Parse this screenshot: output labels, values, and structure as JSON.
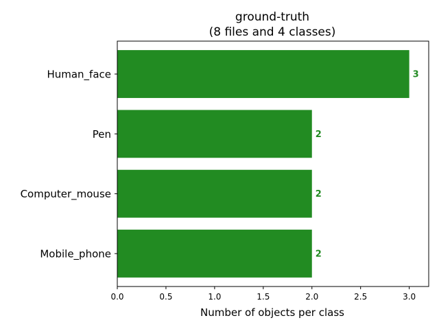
{
  "chart_data": {
    "type": "bar",
    "orientation": "horizontal",
    "title": "ground-truth",
    "subtitle": "(8 files and 4 classes)",
    "xlabel": "Number of objects per class",
    "ylabel": "",
    "categories": [
      "Human_face",
      "Pen",
      "Computer_mouse",
      "Mobile_phone"
    ],
    "values": [
      3,
      2,
      2,
      2
    ],
    "value_labels": [
      "3",
      "2",
      "2",
      "2"
    ],
    "xlim": [
      0,
      3.2
    ],
    "xticks": [
      0.0,
      0.5,
      1.0,
      1.5,
      2.0,
      2.5,
      3.0
    ],
    "xtick_labels": [
      "0.0",
      "0.5",
      "1.0",
      "1.5",
      "2.0",
      "2.5",
      "3.0"
    ],
    "grid": false,
    "bar_color": "#228b22",
    "value_label_color": "#228b22"
  }
}
